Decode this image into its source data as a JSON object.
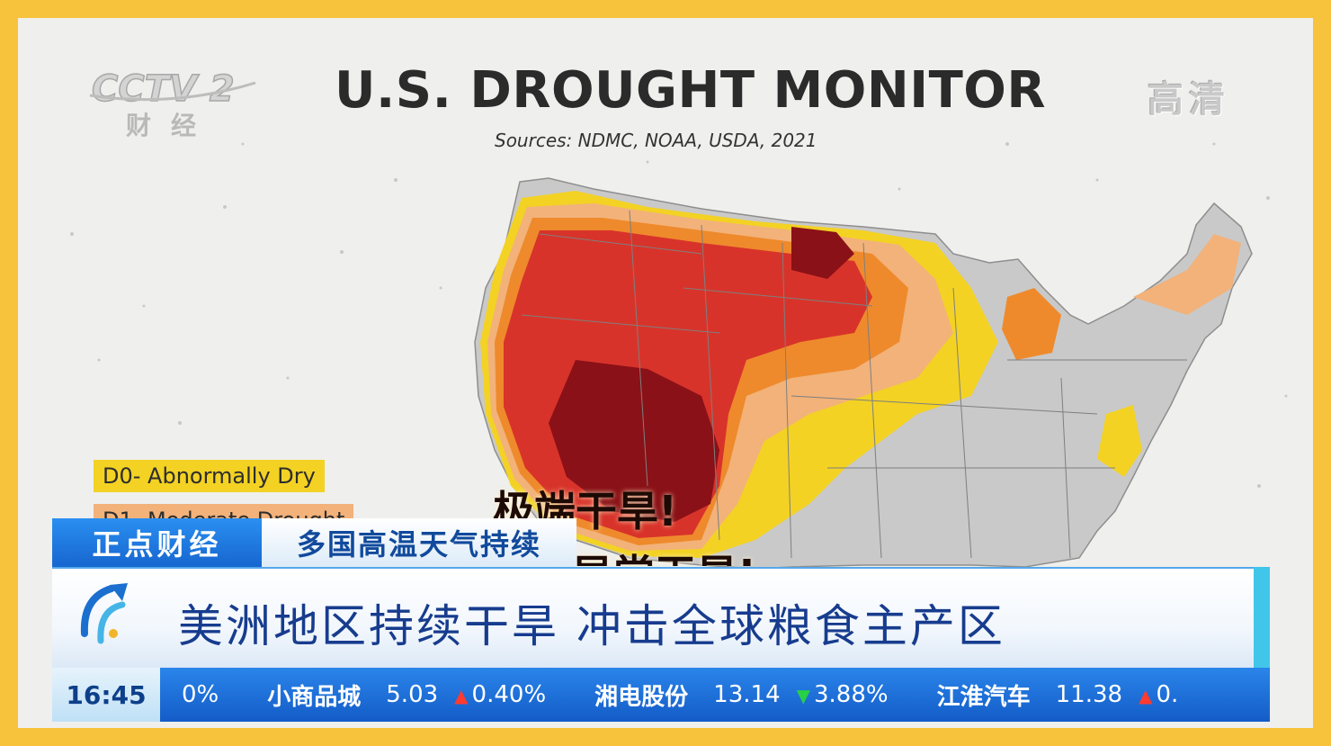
{
  "broadcast": {
    "channel_logo_text": "CCTV 2",
    "channel_sub": "财经",
    "hd_label": "高清"
  },
  "graphic": {
    "title": "U.S. DROUGHT MONITOR",
    "sources": "Sources: NDMC, NOAA, USDA, 2021",
    "legend": [
      {
        "label": "D0- Abnormally Dry",
        "color": "#f3d224"
      },
      {
        "label": "D1- Moderate Drought",
        "color": "#f2b27a"
      }
    ],
    "overlay_captions": [
      "极端干旱!",
      "异常干旱!"
    ],
    "colors": {
      "none": "#c9c9c9",
      "d0": "#f3d224",
      "d1": "#f2b27a",
      "d2": "#ee8a2c",
      "d3": "#d8332a",
      "d4": "#8a1117"
    }
  },
  "banner": {
    "program": "正点财经",
    "topic": "多国高温天气持续",
    "headline": "美洲地区持续干旱 冲击全球粮食主产区",
    "time": "16:45",
    "ticker": [
      {
        "name": "",
        "price": "",
        "direction": "",
        "change": "0%"
      },
      {
        "name": "小商品城",
        "price": "5.03",
        "direction": "up",
        "change": "0.40%"
      },
      {
        "name": "湘电股份",
        "price": "13.14",
        "direction": "down",
        "change": "3.88%"
      },
      {
        "name": "江淮汽车",
        "price": "11.38",
        "direction": "up",
        "change": "0."
      }
    ]
  }
}
